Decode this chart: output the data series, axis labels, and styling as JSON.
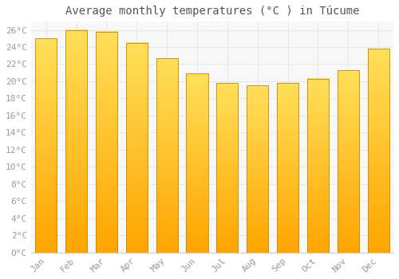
{
  "title": "Average monthly temperatures (°C ) in TÃ¼ume",
  "title_display": "Average monthly temperatures (°C ) in Túcume",
  "months": [
    "Jan",
    "Feb",
    "Mar",
    "Apr",
    "May",
    "Jun",
    "Jul",
    "Aug",
    "Sep",
    "Oct",
    "Nov",
    "Dec"
  ],
  "values": [
    25.0,
    26.0,
    25.8,
    24.5,
    22.7,
    20.9,
    19.8,
    19.5,
    19.8,
    20.3,
    21.3,
    23.8
  ],
  "bar_color_bottom": "#FFA500",
  "bar_color_top": "#FFD966",
  "bar_edge_color": "#CC8800",
  "ylim": [
    0,
    27
  ],
  "yticks": [
    0,
    2,
    4,
    6,
    8,
    10,
    12,
    14,
    16,
    18,
    20,
    22,
    24,
    26
  ],
  "ytick_labels": [
    "0°C",
    "2°C",
    "4°C",
    "6°C",
    "8°C",
    "10°C",
    "12°C",
    "14°C",
    "16°C",
    "18°C",
    "20°C",
    "22°C",
    "24°C",
    "26°C"
  ],
  "background_color": "#ffffff",
  "plot_bg_color": "#f8f8f8",
  "grid_color": "#e8e8e8",
  "title_fontsize": 10,
  "tick_fontsize": 8,
  "tick_color": "#999999",
  "font_family": "monospace",
  "bar_width": 0.72
}
